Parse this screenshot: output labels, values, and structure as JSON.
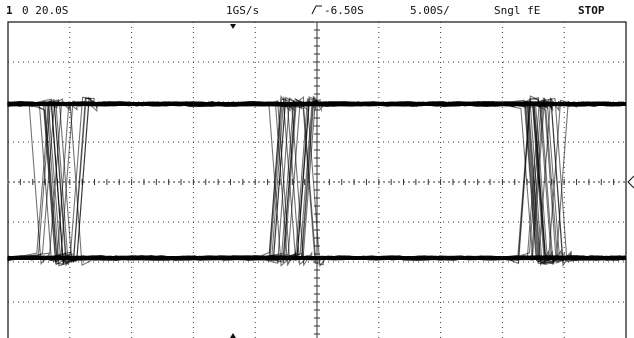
{
  "status_bar": {
    "channel": "1",
    "timebase": "0 20.0S",
    "sample_rate": "1GS/s",
    "trigger_level": "-6.50S",
    "volts_per_div": "5.00S/",
    "trigger_mode": "Sngl fE",
    "run_state": "STOP"
  }
}
